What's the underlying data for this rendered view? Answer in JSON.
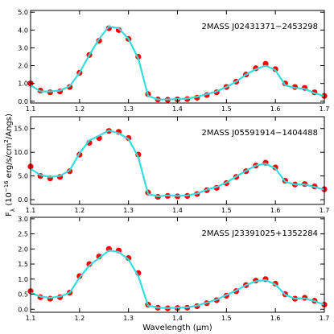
{
  "chart_data": [
    {
      "type": "line",
      "annotation": "2MASS J02431371−2453298",
      "x": [
        1.1,
        1.12,
        1.14,
        1.16,
        1.18,
        1.2,
        1.22,
        1.24,
        1.26,
        1.28,
        1.3,
        1.32,
        1.34,
        1.36,
        1.38,
        1.4,
        1.42,
        1.44,
        1.46,
        1.48,
        1.5,
        1.52,
        1.54,
        1.56,
        1.58,
        1.6,
        1.62,
        1.64,
        1.66,
        1.68,
        1.7
      ],
      "series": [
        {
          "style": "dots",
          "color": "#ff0000",
          "values": [
            1.0,
            0.6,
            0.5,
            0.55,
            0.8,
            1.6,
            2.6,
            3.4,
            4.1,
            4.0,
            3.5,
            2.5,
            0.4,
            0.1,
            0.08,
            0.1,
            0.12,
            0.2,
            0.35,
            0.5,
            0.8,
            1.1,
            1.5,
            1.85,
            2.1,
            1.8,
            1.0,
            0.8,
            0.75,
            0.5,
            0.3
          ]
        },
        {
          "style": "line",
          "color": "#33dddd",
          "values": [
            0.9,
            0.55,
            0.55,
            0.6,
            0.85,
            1.6,
            2.6,
            3.5,
            4.2,
            4.1,
            3.5,
            2.4,
            0.3,
            0.1,
            0.1,
            0.12,
            0.15,
            0.25,
            0.4,
            0.55,
            0.8,
            1.1,
            1.5,
            1.8,
            2.0,
            1.75,
            0.9,
            0.75,
            0.7,
            0.45,
            0.3
          ]
        }
      ],
      "xlim": [
        1.1,
        1.7
      ],
      "xticks": [
        1.1,
        1.2,
        1.3,
        1.4,
        1.5,
        1.6,
        1.7
      ],
      "ylim": [
        -0.1,
        5.1
      ],
      "yticks": [
        {
          "value": 0,
          "label": "0.0"
        },
        {
          "value": 1,
          "label": "1.0"
        },
        {
          "value": 2,
          "label": "2.0"
        },
        {
          "value": 3,
          "label": "3.0"
        },
        {
          "value": 4,
          "label": "4.0"
        },
        {
          "value": 5,
          "label": "5.0"
        }
      ]
    },
    {
      "type": "line",
      "annotation": "2MASS J05591914−1404488",
      "ylabel": [
        "F",
        "λ",
        " (10",
        "−16",
        " erg/s/cm",
        "2",
        "/Angs)"
      ],
      "x": [
        1.1,
        1.12,
        1.14,
        1.16,
        1.18,
        1.2,
        1.22,
        1.24,
        1.26,
        1.28,
        1.3,
        1.32,
        1.34,
        1.36,
        1.38,
        1.4,
        1.42,
        1.44,
        1.46,
        1.48,
        1.5,
        1.52,
        1.54,
        1.56,
        1.58,
        1.6,
        1.62,
        1.64,
        1.66,
        1.68,
        1.7
      ],
      "series": [
        {
          "style": "dots",
          "color": "#ff0000",
          "values": [
            7.0,
            5.0,
            4.5,
            4.8,
            6.0,
            9.5,
            12.0,
            13.0,
            14.5,
            14.3,
            13.0,
            9.5,
            1.5,
            0.6,
            0.8,
            0.7,
            0.8,
            1.2,
            2.0,
            2.5,
            3.5,
            4.8,
            6.0,
            7.2,
            7.8,
            6.8,
            4.0,
            3.2,
            3.3,
            2.8,
            2.2
          ]
        },
        {
          "style": "line",
          "color": "#33dddd",
          "values": [
            6.5,
            5.2,
            4.8,
            5.0,
            6.2,
            9.8,
            12.5,
            13.5,
            14.6,
            14.0,
            12.8,
            9.0,
            1.2,
            0.7,
            0.9,
            0.8,
            0.9,
            1.3,
            2.1,
            2.7,
            3.6,
            4.9,
            6.1,
            7.2,
            7.6,
            6.6,
            3.8,
            3.2,
            3.2,
            2.7,
            2.1
          ]
        }
      ],
      "xlim": [
        1.1,
        1.7
      ],
      "xticks": [
        1.1,
        1.2,
        1.3,
        1.4,
        1.5,
        1.6,
        1.7
      ],
      "ylim": [
        -1,
        17.5
      ],
      "yticks": [
        {
          "value": 0,
          "label": "0.0"
        },
        {
          "value": 5,
          "label": "5.0"
        },
        {
          "value": 10,
          "label": "10.0"
        },
        {
          "value": 15,
          "label": "15.0"
        }
      ]
    },
    {
      "type": "line",
      "annotation": "2MASS J23391025+1352284",
      "xlabel": "Wavelength (μm)",
      "x": [
        1.1,
        1.12,
        1.14,
        1.16,
        1.18,
        1.2,
        1.22,
        1.24,
        1.26,
        1.28,
        1.3,
        1.32,
        1.34,
        1.36,
        1.38,
        1.4,
        1.42,
        1.44,
        1.46,
        1.48,
        1.5,
        1.52,
        1.54,
        1.56,
        1.58,
        1.6,
        1.62,
        1.64,
        1.66,
        1.68,
        1.7
      ],
      "series": [
        {
          "style": "dots",
          "color": "#ff0000",
          "values": [
            0.6,
            0.4,
            0.35,
            0.4,
            0.55,
            1.1,
            1.5,
            1.75,
            2.0,
            1.95,
            1.7,
            1.2,
            0.15,
            0.05,
            0.03,
            0.04,
            0.05,
            0.1,
            0.2,
            0.3,
            0.45,
            0.6,
            0.8,
            0.95,
            1.0,
            0.85,
            0.5,
            0.35,
            0.38,
            0.28,
            0.15
          ]
        },
        {
          "style": "line",
          "color": "#33dddd",
          "values": [
            0.55,
            0.42,
            0.38,
            0.42,
            0.55,
            1.05,
            1.45,
            1.7,
            1.95,
            1.9,
            1.65,
            1.1,
            0.12,
            0.05,
            0.04,
            0.05,
            0.06,
            0.12,
            0.22,
            0.32,
            0.47,
            0.62,
            0.8,
            0.93,
            0.97,
            0.82,
            0.48,
            0.35,
            0.36,
            0.27,
            0.15
          ]
        }
      ],
      "xlim": [
        1.1,
        1.7
      ],
      "xticks": [
        1.1,
        1.2,
        1.3,
        1.4,
        1.5,
        1.6,
        1.7
      ],
      "ylim": [
        -0.1,
        3.05
      ],
      "yticks": [
        {
          "value": 0,
          "label": "0.0"
        },
        {
          "value": 0.5,
          "label": "0.5"
        },
        {
          "value": 1,
          "label": "1.0"
        },
        {
          "value": 1.5,
          "label": "1.5"
        },
        {
          "value": 2,
          "label": "2.0"
        },
        {
          "value": 2.5,
          "label": "2.5"
        },
        {
          "value": 3,
          "label": "3.0"
        }
      ]
    }
  ]
}
